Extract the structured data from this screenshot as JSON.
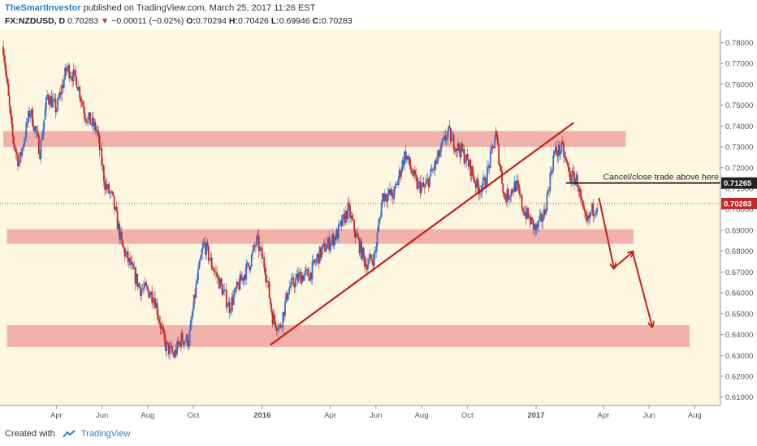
{
  "header": {
    "author": "TheSmartInvestor",
    "published_text": " published on TradingView.com, March 25, 2017 11:26 EST",
    "symbol": "FX:NZDUSD, D",
    "last": "0.70283",
    "change": "−0.00011 (−0.02%)",
    "o_label": "O:",
    "o_value": "0.70294",
    "h_label": "H:",
    "h_value": "0.70426",
    "l_label": "L:",
    "l_value": "0.69946",
    "c_label": "C:",
    "c_value": "0.70283"
  },
  "footer": {
    "created_with": "Created with",
    "brand": "TradingView"
  },
  "colors": {
    "background": "#fdf6e0",
    "zone": "#f0a4a0",
    "up": "#3b6fc9",
    "down": "#c22a2a",
    "trendline": "#c41e1e",
    "arrow": "#c41e1e",
    "axis_text": "#555555",
    "price_tag": "#c22a2a",
    "cancel_tag": "#222222"
  },
  "chart_data": {
    "type": "candlestick",
    "x_ticks": [
      "Apr",
      "Jun",
      "Aug",
      "Oct",
      "2016",
      "Apr",
      "Jun",
      "Aug",
      "Oct",
      "2017",
      "Apr",
      "Jun",
      "Aug"
    ],
    "y_ticks": [
      "0.78000",
      "0.77000",
      "0.76000",
      "0.75000",
      "0.74000",
      "0.73000",
      "0.72000",
      "0.71000",
      "0.70000",
      "0.69000",
      "0.68000",
      "0.67000",
      "0.66000",
      "0.65000",
      "0.64000",
      "0.63000",
      "0.62000",
      "0.61000"
    ],
    "ylim": [
      0.606,
      0.786
    ],
    "x_range": [
      "2015-01-20",
      "2017-08-31"
    ],
    "price_path": [
      [
        "2015-01-20",
        0.778
      ],
      [
        "2015-02-01",
        0.735
      ],
      [
        "2015-02-10",
        0.722
      ],
      [
        "2015-02-25",
        0.748
      ],
      [
        "2015-03-10",
        0.728
      ],
      [
        "2015-03-20",
        0.755
      ],
      [
        "2015-04-01",
        0.748
      ],
      [
        "2015-04-15",
        0.768
      ],
      [
        "2015-04-28",
        0.762
      ],
      [
        "2015-05-10",
        0.745
      ],
      [
        "2015-05-25",
        0.738
      ],
      [
        "2015-06-05",
        0.712
      ],
      [
        "2015-06-15",
        0.705
      ],
      [
        "2015-06-28",
        0.682
      ],
      [
        "2015-07-10",
        0.672
      ],
      [
        "2015-07-22",
        0.662
      ],
      [
        "2015-08-01",
        0.661
      ],
      [
        "2015-08-10",
        0.658
      ],
      [
        "2015-08-24",
        0.635
      ],
      [
        "2015-09-05",
        0.63
      ],
      [
        "2015-09-15",
        0.638
      ],
      [
        "2015-09-25",
        0.637
      ],
      [
        "2015-10-05",
        0.664
      ],
      [
        "2015-10-15",
        0.684
      ],
      [
        "2015-10-25",
        0.674
      ],
      [
        "2015-11-05",
        0.665
      ],
      [
        "2015-11-18",
        0.653
      ],
      [
        "2015-12-01",
        0.664
      ],
      [
        "2015-12-15",
        0.674
      ],
      [
        "2015-12-25",
        0.685
      ],
      [
        "2016-01-05",
        0.672
      ],
      [
        "2016-01-15",
        0.648
      ],
      [
        "2016-01-25",
        0.643
      ],
      [
        "2016-02-05",
        0.662
      ],
      [
        "2016-02-20",
        0.668
      ],
      [
        "2016-03-05",
        0.669
      ],
      [
        "2016-03-15",
        0.677
      ],
      [
        "2016-03-25",
        0.682
      ],
      [
        "2016-04-10",
        0.688
      ],
      [
        "2016-04-25",
        0.7
      ],
      [
        "2016-05-05",
        0.688
      ],
      [
        "2016-05-18",
        0.674
      ],
      [
        "2016-05-30",
        0.677
      ],
      [
        "2016-06-10",
        0.707
      ],
      [
        "2016-06-25",
        0.707
      ],
      [
        "2016-07-10",
        0.727
      ],
      [
        "2016-07-25",
        0.712
      ],
      [
        "2016-08-05",
        0.71
      ],
      [
        "2016-08-20",
        0.722
      ],
      [
        "2016-09-05",
        0.737
      ],
      [
        "2016-09-15",
        0.731
      ],
      [
        "2016-09-25",
        0.727
      ],
      [
        "2016-10-05",
        0.72
      ],
      [
        "2016-10-15",
        0.71
      ],
      [
        "2016-10-25",
        0.713
      ],
      [
        "2016-11-08",
        0.736
      ],
      [
        "2016-11-20",
        0.705
      ],
      [
        "2016-12-05",
        0.712
      ],
      [
        "2016-12-15",
        0.7
      ],
      [
        "2017-01-01",
        0.69
      ],
      [
        "2017-01-12",
        0.698
      ],
      [
        "2017-01-25",
        0.727
      ],
      [
        "2017-02-05",
        0.729
      ],
      [
        "2017-02-15",
        0.716
      ],
      [
        "2017-02-25",
        0.714
      ],
      [
        "2017-03-05",
        0.697
      ],
      [
        "2017-03-10",
        0.693
      ],
      [
        "2017-03-16",
        0.699
      ],
      [
        "2017-03-24",
        0.7028
      ]
    ],
    "zones": [
      {
        "from": "2015-01-20",
        "to": "2017-05-01",
        "low": 0.73,
        "high": 0.7375
      },
      {
        "from": "2015-01-25",
        "to": "2017-05-11",
        "low": 0.6835,
        "high": 0.6905
      },
      {
        "from": "2015-01-25",
        "to": "2017-07-25",
        "low": 0.634,
        "high": 0.6445
      }
    ],
    "trendline": {
      "from": [
        "2016-01-12",
        0.635
      ],
      "to": [
        "2017-02-20",
        0.7415
      ]
    },
    "cancel_level": {
      "value": 0.71265,
      "from": "2017-02-10",
      "to": "2017-06-01",
      "label": "Cancel/close trade above here",
      "tag": "0.71265"
    },
    "current_price": {
      "value": 0.70283,
      "tag": "0.70283"
    },
    "forecast_path": [
      [
        "2017-03-26",
        0.7055
      ],
      [
        "2017-04-15",
        0.672
      ],
      [
        "2017-05-10",
        0.6795
      ],
      [
        "2017-06-05",
        0.644
      ]
    ]
  }
}
